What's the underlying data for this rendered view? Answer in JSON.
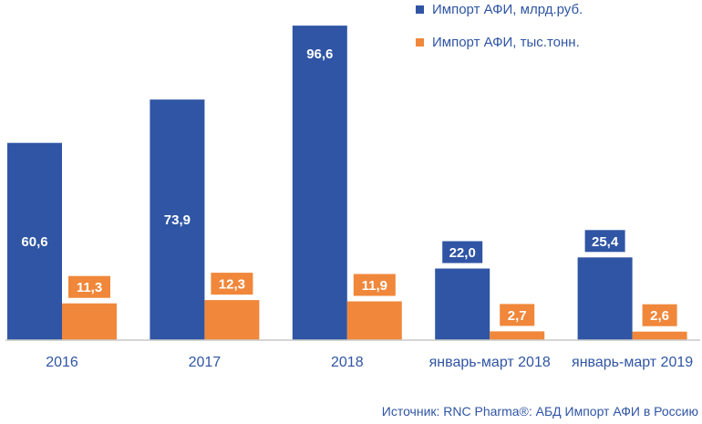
{
  "chart_data": {
    "type": "bar",
    "categories": [
      "2016",
      "2017",
      "2018",
      "январь-март 2018",
      "январь-март 2019"
    ],
    "series": [
      {
        "name": "Импорт АФИ, млрд.руб.",
        "values": [
          60.6,
          73.9,
          96.6,
          22.0,
          25.4
        ],
        "labels": [
          "60,6",
          "73,9",
          "96,6",
          "22,0",
          "25,4"
        ],
        "color": "#2f55a4"
      },
      {
        "name": "Импорт АФИ, тыс.тонн.",
        "values": [
          11.3,
          12.3,
          11.9,
          2.7,
          2.6
        ],
        "labels": [
          "11,3",
          "12,3",
          "11,9",
          "2,7",
          "2,6"
        ],
        "color": "#f0873a"
      }
    ],
    "ylim": [
      0,
      100
    ],
    "grid": false,
    "legend": "top-right",
    "axis_color": "#c9c9c9",
    "text_color": "#2f55a4"
  },
  "source": "Источник: RNC Pharma®: АБД Импорт АФИ в Россию"
}
